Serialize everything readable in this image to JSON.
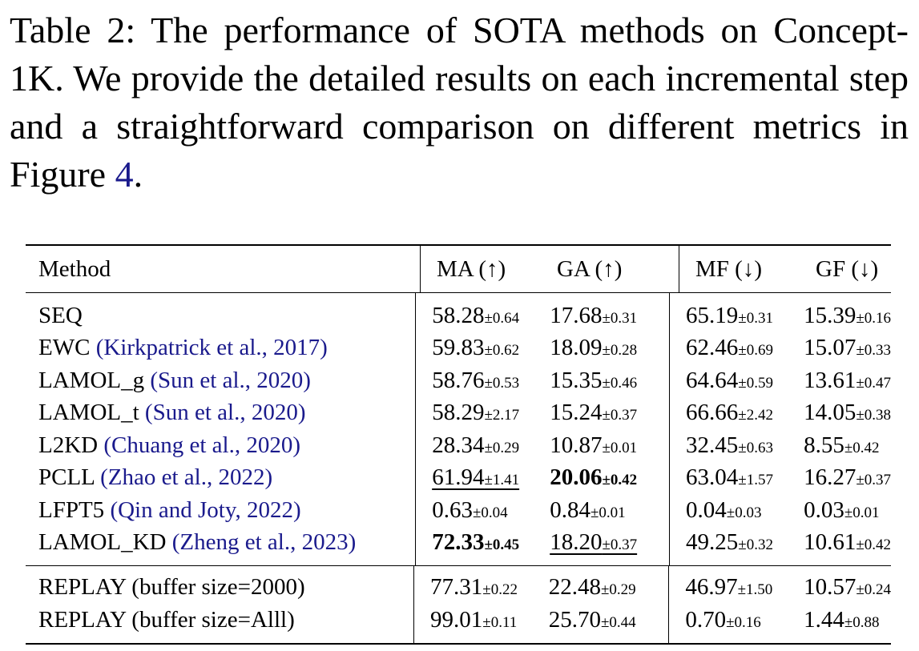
{
  "caption": {
    "text_before_link": "Table 2:  The performance of SOTA methods on Concept-1K. We provide the detailed results on each incremental step and a straightforward comparison on different metrics in Figure ",
    "link": "4",
    "text_after_link": "."
  },
  "table": {
    "headers": {
      "method": "Method",
      "ma": "MA (↑)",
      "ga": "GA (↑)",
      "mf": "MF (↓)",
      "gf": "GF (↓)"
    },
    "rows": [
      {
        "name": "SEQ",
        "cite": "",
        "cite_year": "",
        "ma": "58.28",
        "ma_std": "±0.64",
        "ga": "17.68",
        "ga_std": "±0.31",
        "mf": "65.19",
        "mf_std": "±0.31",
        "gf": "15.39",
        "gf_std": "±0.16"
      },
      {
        "name": "EWC",
        "cite": "Kirkpatrick et al., ",
        "cite_year": "2017",
        "ma": "59.83",
        "ma_std": "±0.62",
        "ga": "18.09",
        "ga_std": "±0.28",
        "mf": "62.46",
        "mf_std": "±0.69",
        "gf": "15.07",
        "gf_std": "±0.33"
      },
      {
        "name": "LAMOL_g",
        "cite": "Sun et al., ",
        "cite_year": "2020",
        "ma": "58.76",
        "ma_std": "±0.53",
        "ga": "15.35",
        "ga_std": "±0.46",
        "mf": "64.64",
        "mf_std": "±0.59",
        "gf": "13.61",
        "gf_std": "±0.47"
      },
      {
        "name": "LAMOL_t",
        "cite": "Sun et al., ",
        "cite_year": "2020",
        "ma": "58.29",
        "ma_std": "±2.17",
        "ga": "15.24",
        "ga_std": "±0.37",
        "mf": "66.66",
        "mf_std": "±2.42",
        "gf": "14.05",
        "gf_std": "±0.38"
      },
      {
        "name": "L2KD",
        "cite": "Chuang et al., ",
        "cite_year": "2020",
        "ma": "28.34",
        "ma_std": "±0.29",
        "ga": "10.87",
        "ga_std": "±0.01",
        "mf": "32.45",
        "mf_std": "±0.63",
        "gf": "8.55",
        "gf_std": "±0.42"
      },
      {
        "name": "PCLL",
        "cite": "Zhao et al., ",
        "cite_year": "2022",
        "ma": "61.94",
        "ma_std": "±1.41",
        "ga": "20.06",
        "ga_std": "±0.42",
        "mf": "63.04",
        "mf_std": "±1.57",
        "gf": "16.27",
        "gf_std": "±0.37"
      },
      {
        "name": "LFPT5",
        "cite": "Qin and Joty, ",
        "cite_year": "2022",
        "ma": "0.63",
        "ma_std": "±0.04",
        "ga": "0.84",
        "ga_std": "±0.01",
        "mf": "0.04",
        "mf_std": "±0.03",
        "gf": "0.03",
        "gf_std": "±0.01"
      },
      {
        "name": "LAMOL_KD",
        "cite": "Zheng et al., ",
        "cite_year": "2023",
        "ma": "72.33",
        "ma_std": "±0.45",
        "ga": "18.20",
        "ga_std": "±0.37",
        "mf": "49.25",
        "mf_std": "±0.32",
        "gf": "10.61",
        "gf_std": "±0.42"
      }
    ],
    "replay_rows": [
      {
        "name": "REPLAY (buffer size=2000)",
        "ma": "77.31",
        "ma_std": "±0.22",
        "ga": "22.48",
        "ga_std": "±0.29",
        "mf": "46.97",
        "mf_std": "±1.50",
        "gf": "10.57",
        "gf_std": "±0.24"
      },
      {
        "name": "REPLAY (buffer size=Alll)",
        "ma": "99.01",
        "ma_std": "±0.11",
        "ga": "25.70",
        "ga_std": "±0.44",
        "mf": "0.70",
        "mf_std": "±0.16",
        "gf": "1.44",
        "gf_std": "±0.88"
      }
    ]
  }
}
